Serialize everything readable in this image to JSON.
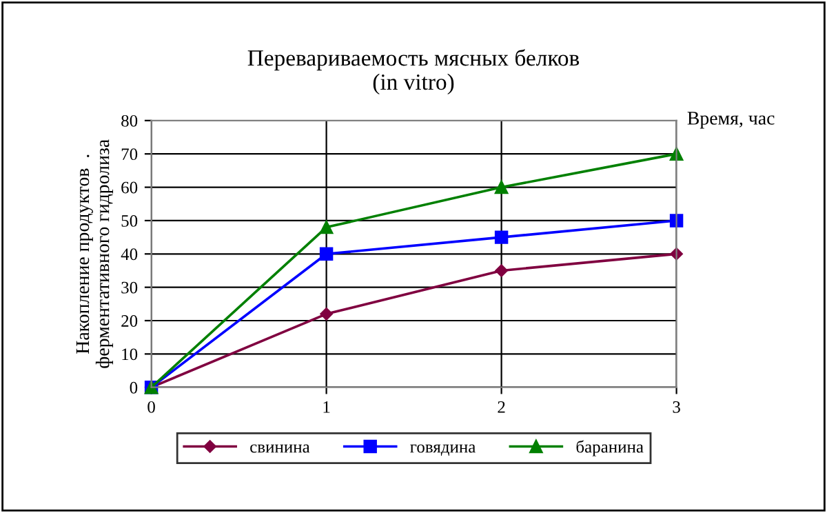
{
  "chart_data": {
    "type": "line",
    "title": "Перевариваемость мясных белков\n(in vitro)",
    "xlabel": "Время, час",
    "ylabel": "Накопление продуктов  .\nферментативного гидролиза",
    "x": [
      0,
      1,
      2,
      3
    ],
    "xlim": [
      0,
      3
    ],
    "xticks": [
      0,
      1,
      2,
      3
    ],
    "ylim": [
      0,
      80
    ],
    "yticks": [
      0,
      10,
      20,
      30,
      40,
      50,
      60,
      70,
      80
    ],
    "grid": true,
    "legend": "bottom",
    "series": [
      {
        "name": "свинина",
        "color": "#800040",
        "marker": "diamond",
        "values": [
          0,
          22,
          35,
          40
        ]
      },
      {
        "name": "говядина",
        "color": "#0000ff",
        "marker": "square",
        "values": [
          0,
          40,
          45,
          50
        ]
      },
      {
        "name": "баранина",
        "color": "#008000",
        "marker": "triangle",
        "values": [
          0,
          48,
          60,
          70
        ]
      }
    ]
  }
}
